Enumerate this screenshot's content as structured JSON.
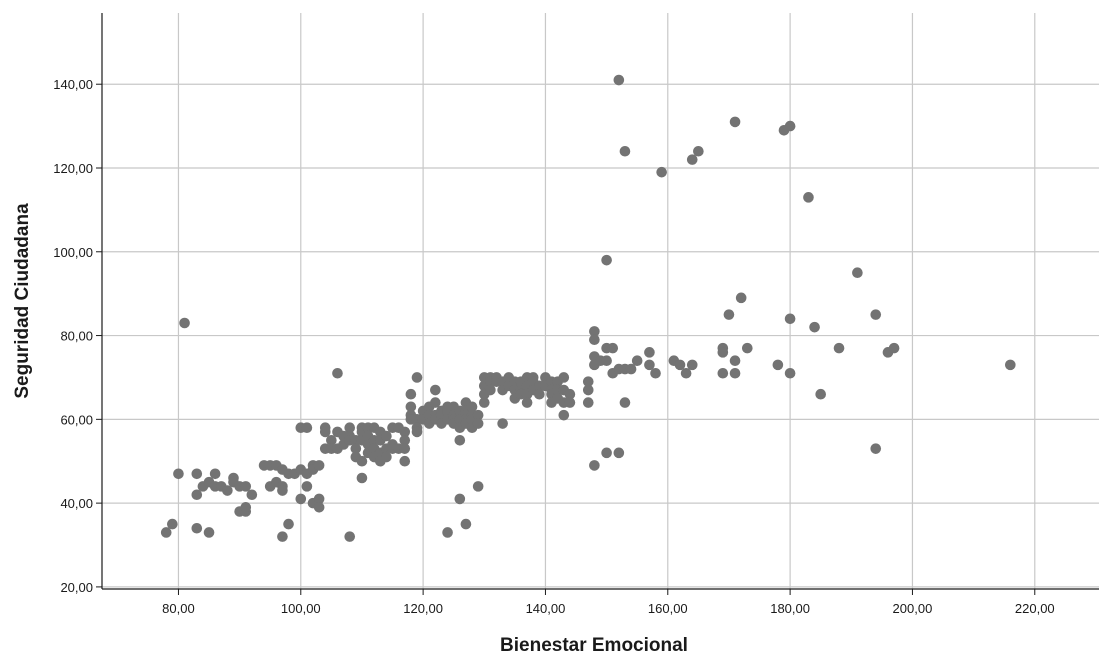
{
  "chart_data": {
    "type": "scatter",
    "title": "",
    "xlabel": "Bienestar Emocional",
    "ylabel": "Seguridad Ciudadana",
    "xlim": [
      67.5,
      230.5
    ],
    "ylim": [
      19.5,
      157
    ],
    "xticks": [
      80,
      100,
      120,
      140,
      160,
      180,
      200,
      220
    ],
    "yticks": [
      20,
      40,
      60,
      80,
      100,
      120,
      140
    ],
    "xtick_labels": [
      "80,00",
      "100,00",
      "120,00",
      "140,00",
      "160,00",
      "180,00",
      "200,00",
      "220,00"
    ],
    "ytick_labels": [
      "20,00",
      "40,00",
      "60,00",
      "80,00",
      "100,00",
      "120,00",
      "140,00"
    ],
    "grid": true,
    "marker_color": "#737373",
    "points": [
      [
        78,
        33
      ],
      [
        79,
        35
      ],
      [
        80,
        47
      ],
      [
        81,
        83
      ],
      [
        83,
        47
      ],
      [
        83,
        42
      ],
      [
        83,
        34
      ],
      [
        84,
        44
      ],
      [
        85,
        45
      ],
      [
        85,
        33
      ],
      [
        86,
        47
      ],
      [
        86,
        44
      ],
      [
        87,
        44
      ],
      [
        88,
        43
      ],
      [
        89,
        46
      ],
      [
        89,
        45
      ],
      [
        90,
        44
      ],
      [
        90,
        38
      ],
      [
        91,
        38
      ],
      [
        91,
        39
      ],
      [
        91,
        44
      ],
      [
        92,
        42
      ],
      [
        94,
        49
      ],
      [
        95,
        49
      ],
      [
        95,
        44
      ],
      [
        96,
        49
      ],
      [
        96,
        45
      ],
      [
        97,
        48
      ],
      [
        97,
        44
      ],
      [
        97,
        43
      ],
      [
        97,
        32
      ],
      [
        98,
        47
      ],
      [
        98,
        35
      ],
      [
        99,
        47
      ],
      [
        100,
        58
      ],
      [
        100,
        48
      ],
      [
        100,
        41
      ],
      [
        101,
        58
      ],
      [
        101,
        47
      ],
      [
        101,
        44
      ],
      [
        102,
        49
      ],
      [
        102,
        48
      ],
      [
        102,
        40
      ],
      [
        103,
        49
      ],
      [
        103,
        41
      ],
      [
        103,
        39
      ],
      [
        104,
        58
      ],
      [
        104,
        57
      ],
      [
        104,
        53
      ],
      [
        105,
        55
      ],
      [
        105,
        53
      ],
      [
        106,
        71
      ],
      [
        106,
        57
      ],
      [
        106,
        53
      ],
      [
        107,
        56
      ],
      [
        107,
        54
      ],
      [
        108,
        58
      ],
      [
        108,
        56
      ],
      [
        108,
        55
      ],
      [
        108,
        32
      ],
      [
        109,
        55
      ],
      [
        109,
        53
      ],
      [
        109,
        51
      ],
      [
        110,
        58
      ],
      [
        110,
        57
      ],
      [
        110,
        55
      ],
      [
        110,
        50
      ],
      [
        110,
        46
      ],
      [
        111,
        58
      ],
      [
        111,
        56
      ],
      [
        111,
        54
      ],
      [
        111,
        52
      ],
      [
        112,
        58
      ],
      [
        112,
        55
      ],
      [
        112,
        53
      ],
      [
        112,
        51
      ],
      [
        113,
        57
      ],
      [
        113,
        55
      ],
      [
        113,
        52
      ],
      [
        113,
        50
      ],
      [
        114,
        56
      ],
      [
        114,
        53
      ],
      [
        114,
        51
      ],
      [
        115,
        58
      ],
      [
        115,
        54
      ],
      [
        115,
        53
      ],
      [
        116,
        58
      ],
      [
        116,
        53
      ],
      [
        117,
        57
      ],
      [
        117,
        55
      ],
      [
        117,
        53
      ],
      [
        117,
        50
      ],
      [
        118,
        66
      ],
      [
        118,
        63
      ],
      [
        118,
        61
      ],
      [
        118,
        60
      ],
      [
        119,
        70
      ],
      [
        119,
        60
      ],
      [
        119,
        58
      ],
      [
        119,
        57
      ],
      [
        120,
        62
      ],
      [
        120,
        60
      ],
      [
        121,
        63
      ],
      [
        121,
        61
      ],
      [
        121,
        59
      ],
      [
        122,
        67
      ],
      [
        122,
        64
      ],
      [
        122,
        61
      ],
      [
        122,
        60
      ],
      [
        123,
        62
      ],
      [
        123,
        61
      ],
      [
        123,
        59
      ],
      [
        124,
        63
      ],
      [
        124,
        62
      ],
      [
        124,
        60
      ],
      [
        124,
        33
      ],
      [
        125,
        63
      ],
      [
        125,
        61
      ],
      [
        125,
        60
      ],
      [
        125,
        59
      ],
      [
        126,
        62
      ],
      [
        126,
        60
      ],
      [
        126,
        58
      ],
      [
        126,
        55
      ],
      [
        126,
        41
      ],
      [
        127,
        64
      ],
      [
        127,
        62
      ],
      [
        127,
        61
      ],
      [
        127,
        60
      ],
      [
        127,
        59
      ],
      [
        127,
        35
      ],
      [
        128,
        63
      ],
      [
        128,
        61
      ],
      [
        128,
        60
      ],
      [
        128,
        58
      ],
      [
        129,
        61
      ],
      [
        129,
        59
      ],
      [
        129,
        44
      ],
      [
        130,
        70
      ],
      [
        130,
        68
      ],
      [
        130,
        66
      ],
      [
        130,
        64
      ],
      [
        131,
        70
      ],
      [
        131,
        69
      ],
      [
        131,
        67
      ],
      [
        132,
        70
      ],
      [
        132,
        69
      ],
      [
        133,
        69
      ],
      [
        133,
        67
      ],
      [
        133,
        59
      ],
      [
        134,
        70
      ],
      [
        134,
        68
      ],
      [
        135,
        69
      ],
      [
        135,
        67
      ],
      [
        135,
        65
      ],
      [
        136,
        69
      ],
      [
        136,
        67
      ],
      [
        136,
        66
      ],
      [
        137,
        70
      ],
      [
        137,
        68
      ],
      [
        137,
        66
      ],
      [
        137,
        64
      ],
      [
        138,
        70
      ],
      [
        138,
        69
      ],
      [
        138,
        67
      ],
      [
        139,
        68
      ],
      [
        139,
        66
      ],
      [
        140,
        70
      ],
      [
        140,
        68
      ],
      [
        141,
        69
      ],
      [
        141,
        67
      ],
      [
        141,
        66
      ],
      [
        141,
        64
      ],
      [
        142,
        69
      ],
      [
        142,
        67
      ],
      [
        142,
        65
      ],
      [
        143,
        70
      ],
      [
        143,
        67
      ],
      [
        143,
        64
      ],
      [
        143,
        61
      ],
      [
        144,
        66
      ],
      [
        144,
        64
      ],
      [
        147,
        69
      ],
      [
        147,
        67
      ],
      [
        147,
        64
      ],
      [
        148,
        81
      ],
      [
        148,
        79
      ],
      [
        148,
        75
      ],
      [
        148,
        73
      ],
      [
        148,
        49
      ],
      [
        149,
        74
      ],
      [
        150,
        98
      ],
      [
        150,
        77
      ],
      [
        150,
        74
      ],
      [
        150,
        52
      ],
      [
        151,
        77
      ],
      [
        151,
        71
      ],
      [
        152,
        141
      ],
      [
        152,
        72
      ],
      [
        152,
        52
      ],
      [
        153,
        124
      ],
      [
        153,
        72
      ],
      [
        153,
        64
      ],
      [
        154,
        72
      ],
      [
        155,
        74
      ],
      [
        157,
        76
      ],
      [
        157,
        73
      ],
      [
        158,
        71
      ],
      [
        159,
        119
      ],
      [
        161,
        74
      ],
      [
        162,
        73
      ],
      [
        163,
        71
      ],
      [
        164,
        122
      ],
      [
        164,
        73
      ],
      [
        165,
        124
      ],
      [
        169,
        77
      ],
      [
        169,
        76
      ],
      [
        169,
        71
      ],
      [
        170,
        85
      ],
      [
        171,
        131
      ],
      [
        171,
        74
      ],
      [
        171,
        71
      ],
      [
        172,
        89
      ],
      [
        173,
        77
      ],
      [
        178,
        73
      ],
      [
        179,
        129
      ],
      [
        180,
        130
      ],
      [
        180,
        84
      ],
      [
        180,
        71
      ],
      [
        183,
        113
      ],
      [
        184,
        82
      ],
      [
        185,
        66
      ],
      [
        188,
        77
      ],
      [
        191,
        95
      ],
      [
        194,
        85
      ],
      [
        194,
        53
      ],
      [
        196,
        76
      ],
      [
        197,
        77
      ],
      [
        216,
        73
      ]
    ]
  }
}
